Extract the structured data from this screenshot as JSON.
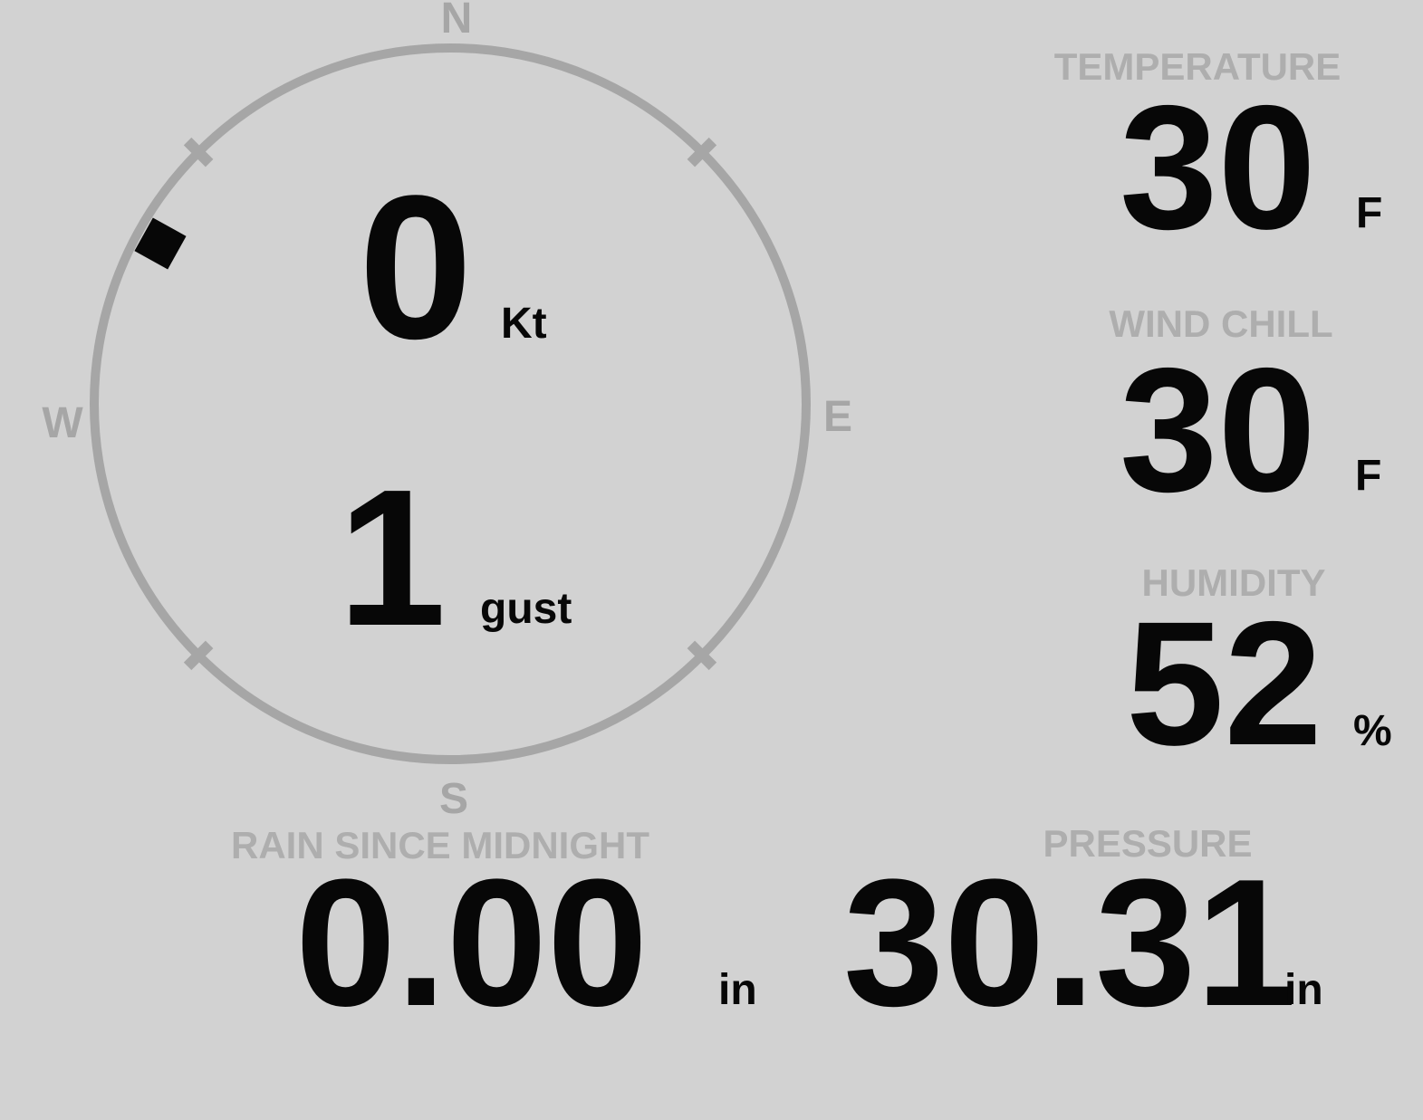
{
  "colors": {
    "background": "#d2d2d2",
    "gauge": "#a6a6a6",
    "label": "#aeaeae",
    "value": "#070707"
  },
  "compass": {
    "cardinals": {
      "north": "N",
      "east": "E",
      "south": "S",
      "west": "W"
    },
    "wind_speed": {
      "value": "0",
      "unit": "Kt"
    },
    "wind_gust": {
      "value": "1",
      "unit": "gust"
    },
    "wind_direction_deg": 299
  },
  "metrics": {
    "temperature": {
      "label": "TEMPERATURE",
      "value": "30",
      "unit": "F"
    },
    "wind_chill": {
      "label": "WIND CHILL",
      "value": "30",
      "unit": "F"
    },
    "humidity": {
      "label": "HUMIDITY",
      "value": "52",
      "unit": "%"
    },
    "rain_since_midnight": {
      "label": "RAIN SINCE MIDNIGHT",
      "value": "0.00",
      "unit": "in"
    },
    "pressure": {
      "label": "PRESSURE",
      "value": "30.31",
      "unit": "in"
    }
  }
}
